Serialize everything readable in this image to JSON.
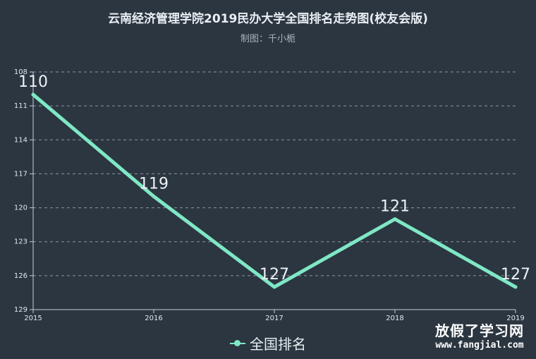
{
  "chart_data": {
    "type": "line",
    "title": "云南经济管理学院2019民办大学全国排名走势图(校友会版)",
    "subtitle": "制图：千小栀",
    "x": [
      "2015",
      "2016",
      "2017",
      "2018",
      "2019"
    ],
    "series": [
      {
        "name": "全国排名",
        "values": [
          110,
          119,
          127,
          121,
          127
        ],
        "color": "#7fe7c4"
      }
    ],
    "y_axis": {
      "inverse": true,
      "min": 108,
      "max": 129,
      "ticks": [
        "108",
        "111",
        "114",
        "117",
        "120",
        "123",
        "126",
        "129"
      ]
    },
    "grid": true,
    "legend": "bottom-center"
  },
  "watermark": {
    "main": "放假了学习网",
    "url": "www.fangjial.com"
  }
}
